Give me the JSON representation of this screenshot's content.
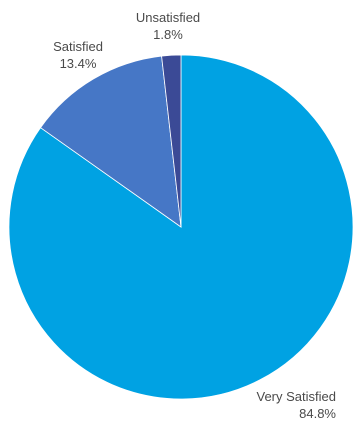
{
  "chart_data": {
    "type": "pie",
    "title": "",
    "categories": [
      "Very Satisfied",
      "Satisfied",
      "Unsatisfied"
    ],
    "values": [
      84.8,
      13.4,
      1.8
    ],
    "value_labels": [
      "84.8%",
      "13.4%",
      "1.8%"
    ],
    "colors": [
      "#00a2e3",
      "#4677c6",
      "#3b4a96"
    ],
    "start_angle": "12 o'clock",
    "direction": "clockwise",
    "legend": "none"
  }
}
